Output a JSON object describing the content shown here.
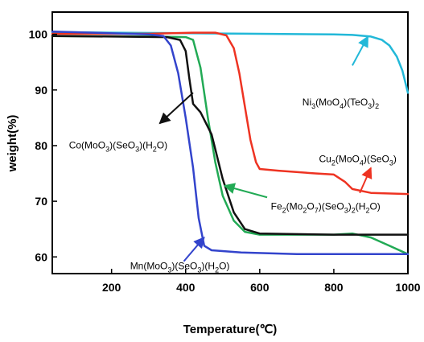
{
  "chart_data": {
    "type": "line",
    "xlabel": "Temperature(℃)",
    "ylabel": "weight(%)",
    "xlim": [
      40,
      1000
    ],
    "ylim": [
      57,
      104
    ],
    "x_ticks": [
      200,
      400,
      600,
      800,
      1000
    ],
    "y_ticks": [
      60,
      70,
      80,
      90,
      100
    ],
    "grid": false,
    "legend": "none",
    "series": [
      {
        "name": "Ni3(MoO4)(TeO3)2",
        "color": "#22b8d8",
        "points": [
          [
            40,
            100.4
          ],
          [
            200,
            100.3
          ],
          [
            400,
            100.2
          ],
          [
            600,
            100.1
          ],
          [
            800,
            100.0
          ],
          [
            850,
            99.9
          ],
          [
            900,
            99.6
          ],
          [
            930,
            99.0
          ],
          [
            950,
            98.0
          ],
          [
            970,
            96.0
          ],
          [
            985,
            93.5
          ],
          [
            1000,
            89.5
          ]
        ]
      },
      {
        "name": "Cu2(MoO4)(SeO3)",
        "color": "#ee3322",
        "points": [
          [
            40,
            100.1
          ],
          [
            300,
            100.1
          ],
          [
            420,
            100.3
          ],
          [
            480,
            100.3
          ],
          [
            510,
            99.8
          ],
          [
            530,
            97.5
          ],
          [
            545,
            93.0
          ],
          [
            560,
            87.0
          ],
          [
            575,
            81.0
          ],
          [
            590,
            77.0
          ],
          [
            600,
            75.8
          ],
          [
            650,
            75.5
          ],
          [
            750,
            75.0
          ],
          [
            800,
            74.8
          ],
          [
            830,
            73.5
          ],
          [
            850,
            72.2
          ],
          [
            900,
            71.5
          ],
          [
            1000,
            71.3
          ]
        ]
      },
      {
        "name": "Fe2(Mo2O7)(SeO3)2(H2O)",
        "color": "#22aa55",
        "points": [
          [
            40,
            99.7
          ],
          [
            300,
            99.6
          ],
          [
            400,
            99.5
          ],
          [
            420,
            99.0
          ],
          [
            440,
            94.0
          ],
          [
            460,
            85.0
          ],
          [
            480,
            77.0
          ],
          [
            500,
            71.0
          ],
          [
            530,
            66.5
          ],
          [
            560,
            64.5
          ],
          [
            600,
            64.0
          ],
          [
            700,
            64.0
          ],
          [
            800,
            64.0
          ],
          [
            850,
            64.2
          ],
          [
            900,
            63.5
          ],
          [
            950,
            62.0
          ],
          [
            1000,
            60.5
          ]
        ]
      },
      {
        "name": "Co(MoO3)(SeO3)(H2O)",
        "color": "#111111",
        "points": [
          [
            40,
            99.7
          ],
          [
            350,
            99.5
          ],
          [
            385,
            99.0
          ],
          [
            400,
            97.0
          ],
          [
            410,
            92.0
          ],
          [
            420,
            87.5
          ],
          [
            440,
            86.0
          ],
          [
            470,
            82.0
          ],
          [
            500,
            74.0
          ],
          [
            530,
            68.0
          ],
          [
            560,
            65.0
          ],
          [
            600,
            64.2
          ],
          [
            800,
            64.0
          ],
          [
            1000,
            64.0
          ]
        ]
      },
      {
        "name": "Mn(MoO3)(SeO3)(H2O)",
        "color": "#3344cc",
        "points": [
          [
            40,
            100.5
          ],
          [
            300,
            100.0
          ],
          [
            340,
            99.7
          ],
          [
            360,
            98.0
          ],
          [
            380,
            93.0
          ],
          [
            400,
            85.0
          ],
          [
            420,
            76.0
          ],
          [
            435,
            67.0
          ],
          [
            450,
            62.0
          ],
          [
            470,
            61.2
          ],
          [
            550,
            60.8
          ],
          [
            700,
            60.5
          ],
          [
            1000,
            60.5
          ]
        ]
      }
    ],
    "annotations": [
      {
        "text": "Ni3(MoO4)(TeO3)2",
        "parts": [
          [
            "Ni",
            0
          ],
          [
            "3",
            1
          ],
          [
            "(MoO",
            0
          ],
          [
            "4",
            1
          ],
          [
            ")(TeO",
            0
          ],
          [
            "3",
            1
          ],
          [
            ")",
            0
          ],
          [
            "2",
            1
          ]
        ],
        "text_at": [
          715,
          87.2
        ],
        "arrow_from": [
          850,
          94.4
        ],
        "arrow_to": [
          892,
          99.6
        ],
        "color": "#22b8d8"
      },
      {
        "text": "Co(MoO3)(SeO3)(H2O)",
        "parts": [
          [
            "Co(MoO",
            0
          ],
          [
            "3",
            1
          ],
          [
            ")(SeO",
            0
          ],
          [
            "3",
            1
          ],
          [
            ")(H",
            0
          ],
          [
            "2",
            1
          ],
          [
            "O)",
            0
          ]
        ],
        "text_at": [
          85,
          79.5
        ],
        "arrow_from": [
          420,
          89.5
        ],
        "arrow_to": [
          330,
          84.0
        ],
        "color": "#111111"
      },
      {
        "text": "Cu2(MoO4)(SeO3)",
        "parts": [
          [
            "Cu",
            0
          ],
          [
            "2",
            1
          ],
          [
            "(MoO",
            0
          ],
          [
            "4",
            1
          ],
          [
            ")(SeO",
            0
          ],
          [
            "3",
            1
          ],
          [
            ")",
            0
          ]
        ],
        "text_at": [
          760,
          77.0
        ],
        "arrow_from": [
          870,
          71.5
        ],
        "arrow_to": [
          900,
          76.0
        ],
        "color": "#ee3322"
      },
      {
        "text": "Fe2(Mo2O7)(SeO3)2(H2O)",
        "parts": [
          [
            "Fe",
            0
          ],
          [
            "2",
            1
          ],
          [
            "(Mo",
            0
          ],
          [
            "2",
            1
          ],
          [
            "O",
            0
          ],
          [
            "7",
            1
          ],
          [
            ")(SeO",
            0
          ],
          [
            "3",
            1
          ],
          [
            ")",
            0
          ],
          [
            "2",
            1
          ],
          [
            "(H",
            0
          ],
          [
            "2",
            1
          ],
          [
            "O)",
            0
          ]
        ],
        "text_at": [
          630,
          68.5
        ],
        "arrow_from": [
          620,
          70.7
        ],
        "arrow_to": [
          505,
          72.8
        ],
        "color": "#22aa55"
      },
      {
        "text": "Mn(MoO3)(SeO3)(H2O)",
        "parts": [
          [
            "Mn(MoO",
            0
          ],
          [
            "3",
            1
          ],
          [
            ")(SeO",
            0
          ],
          [
            "3",
            1
          ],
          [
            ")(H",
            0
          ],
          [
            "2",
            1
          ],
          [
            "O)",
            0
          ]
        ],
        "text_at": [
          250,
          57.8
        ],
        "arrow_from": [
          395,
          59.2
        ],
        "arrow_to": [
          450,
          63.5
        ],
        "color": "#3344cc"
      }
    ]
  }
}
